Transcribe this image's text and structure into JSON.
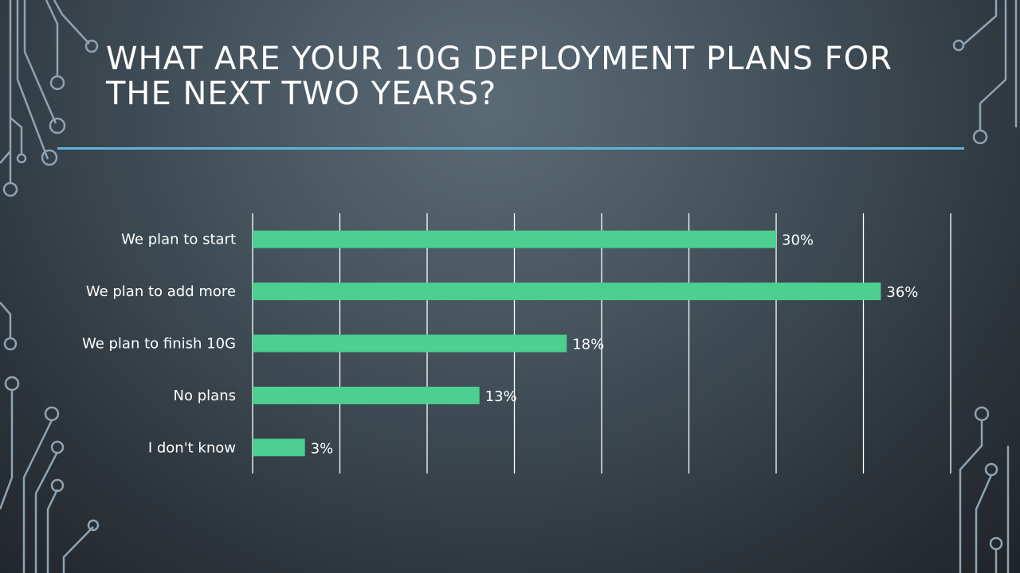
{
  "slide": {
    "title": "WHAT ARE YOUR 10G DEPLOYMENT PLANS FOR THE NEXT TWO YEARS?",
    "accent_line_color": "#5db4da",
    "decoration": "circuit-board-lines"
  },
  "chart_data": {
    "type": "bar",
    "orientation": "horizontal",
    "categories": [
      "We plan to start",
      "We plan to add more",
      "We plan to finish 10G",
      "No plans",
      "I don't know"
    ],
    "values": [
      30,
      36,
      18,
      13,
      3
    ],
    "data_labels": [
      "30%",
      "36%",
      "18%",
      "13%",
      "3%"
    ],
    "unit": "%",
    "xlim": [
      0,
      40
    ],
    "grid_step": 5,
    "grid": "vertical",
    "bar_color": "#4ccf8f",
    "legend": "none"
  }
}
